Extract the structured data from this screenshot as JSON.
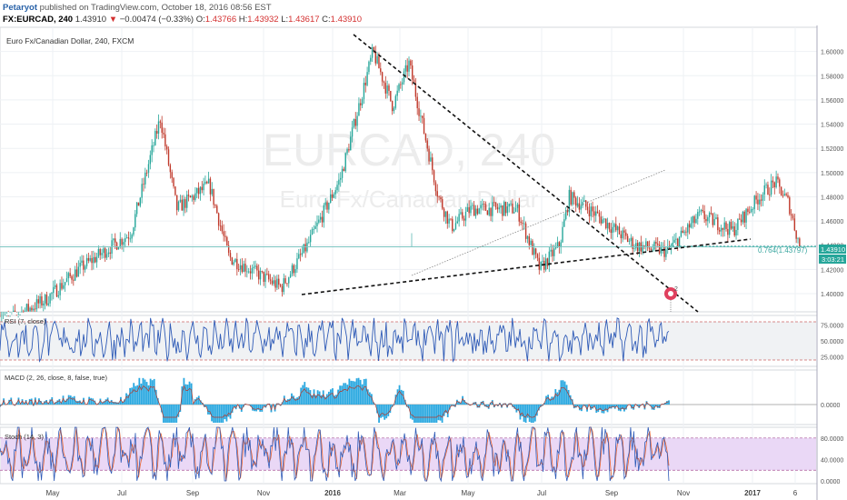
{
  "header": {
    "user": "Petaryot",
    "published_text": "published on TradingView.com, October 18, 2016 08:56 EST",
    "symbol": "FX:EURCAD, 240",
    "last": "1.43910",
    "change_arrow": "▼",
    "change": "−0.00474 (−0.33%)",
    "o_label": "O:",
    "o": "1.43766",
    "h_label": "H:",
    "h": "1.43932",
    "l_label": "L:",
    "l": "1.43617",
    "c_label": "C:",
    "c": "1.43910"
  },
  "chart": {
    "title": "Euro Fx/Canadian Dollar, 240, FXCM",
    "watermark_symbol": "EURCAD, 240",
    "watermark_name": "Euro Fx/Canadian Dollar",
    "fib_label": "0.764(1.43797)",
    "price_tag": "1.43910",
    "time_tag": "3:03:21",
    "alert_badge": "2"
  },
  "chart_data": [
    {
      "type": "candlestick",
      "title": "Euro Fx/Canadian Dollar, 240, FXCM",
      "x_ticks": [
        "May",
        "Jul",
        "Sep",
        "Nov",
        "2016",
        "Mar",
        "May",
        "Jul",
        "Sep",
        "Nov",
        "2017",
        "6"
      ],
      "y_ticks": [
        1.4,
        1.42,
        1.44,
        1.46,
        1.48,
        1.5,
        1.52,
        1.54,
        1.56,
        1.58,
        1.6
      ],
      "y_tick_labels": [
        "1.40000",
        "1.42000",
        "1.44000",
        "1.46000",
        "1.48000",
        "1.50000",
        "1.52000",
        "1.54000",
        "1.56000",
        "1.58000",
        "1.60000"
      ],
      "ylim": [
        1.385,
        1.62
      ],
      "price_path": [
        [
          0,
          1.375
        ],
        [
          0.07,
          1.395
        ],
        [
          0.12,
          1.42
        ],
        [
          0.2,
          1.45
        ],
        [
          0.245,
          1.545
        ],
        [
          0.27,
          1.47
        ],
        [
          0.32,
          1.49
        ],
        [
          0.35,
          1.43
        ],
        [
          0.43,
          1.405
        ],
        [
          0.47,
          1.44
        ],
        [
          0.52,
          1.495
        ],
        [
          0.57,
          1.6
        ],
        [
          0.6,
          1.555
        ],
        [
          0.625,
          1.59
        ],
        [
          0.67,
          1.48
        ],
        [
          0.69,
          1.455
        ],
        [
          0.72,
          1.47
        ],
        [
          0.79,
          1.47
        ],
        [
          0.825,
          1.42
        ],
        [
          0.855,
          1.44
        ],
        [
          0.87,
          1.48
        ],
        [
          0.9,
          1.47
        ],
        [
          0.97,
          1.44
        ],
        [
          1.02,
          1.435
        ],
        [
          1.07,
          1.465
        ],
        [
          1.12,
          1.452
        ],
        [
          1.16,
          1.48
        ],
        [
          1.185,
          1.492
        ],
        [
          1.205,
          1.475
        ],
        [
          1.222,
          1.4391
        ]
      ],
      "last_price": 1.4391,
      "fib_level": 1.43797
    },
    {
      "type": "line",
      "title": "RSI (7, close)",
      "y_ticks": [
        25.0,
        50.0,
        75.0
      ],
      "y_tick_labels": [
        "25.0000",
        "50.0000",
        "75.0000"
      ],
      "ylim": [
        10,
        90
      ],
      "levels": [
        80,
        20
      ],
      "range_min": 18,
      "range_max": 86
    },
    {
      "type": "bar",
      "title": "MACD (2, 26, close, 8, false, true)",
      "y_ticks": [
        0.0
      ],
      "y_tick_labels": [
        "0.0000"
      ]
    },
    {
      "type": "line",
      "title": "Stoch (14, 3)",
      "y_ticks": [
        0.0,
        40.0,
        80.0
      ],
      "y_tick_labels": [
        "0.0000",
        "40.0000",
        "80.0000"
      ],
      "ylim": [
        -5,
        100
      ],
      "levels": [
        80,
        20
      ]
    }
  ],
  "colors": {
    "up": "#26a69a",
    "down": "#c0392b",
    "rsi_line": "#2f5bb7",
    "macd_hist": "#29a8e0",
    "stoch_k": "#2f5bb7",
    "stoch_d": "#e8612c",
    "stoch_band": "#ead8f6",
    "grid": "#eef1f4",
    "fib": "#7fc7c3"
  }
}
